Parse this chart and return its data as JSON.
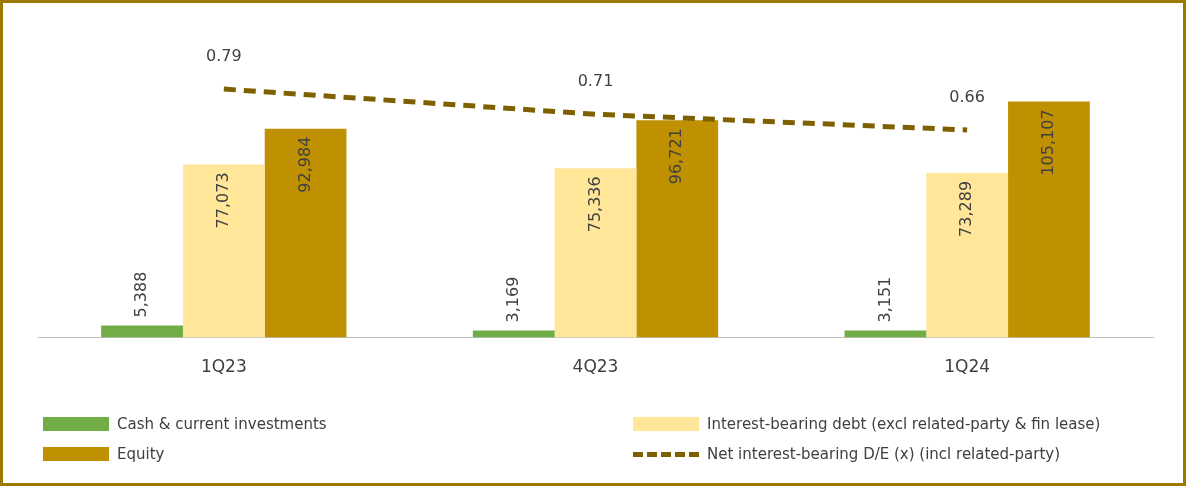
{
  "chart_data": {
    "type": "bar",
    "categories": [
      "1Q23",
      "4Q23",
      "1Q24"
    ],
    "series": [
      {
        "name": "Cash & current investments",
        "color": "#70ad47",
        "values": [
          5388,
          3169,
          3151
        ],
        "value_labels": [
          "5,388",
          "3,169",
          "3,151"
        ]
      },
      {
        "name": "Interest-bearing debt (excl related-party & fin lease)",
        "color": "#ffe699",
        "values": [
          77073,
          75336,
          73289
        ],
        "value_labels": [
          "77,073",
          "75,336",
          "73,289"
        ]
      },
      {
        "name": "Equity",
        "color": "#bf9000",
        "values": [
          92984,
          96721,
          105107
        ],
        "value_labels": [
          "92,984",
          "96,721",
          "105,107"
        ]
      },
      {
        "name": "Net interest-bearing D/E (x) (incl related-party)",
        "type": "line",
        "axis": "y2",
        "color": "#7f6000",
        "line_style": "dashed",
        "marker": "none",
        "values": [
          0.79,
          0.71,
          0.66
        ],
        "value_labels": [
          "0.79",
          "0.71",
          "0.66"
        ]
      }
    ],
    "tick_labels": "x",
    "legend": "bottom",
    "grid": false
  }
}
